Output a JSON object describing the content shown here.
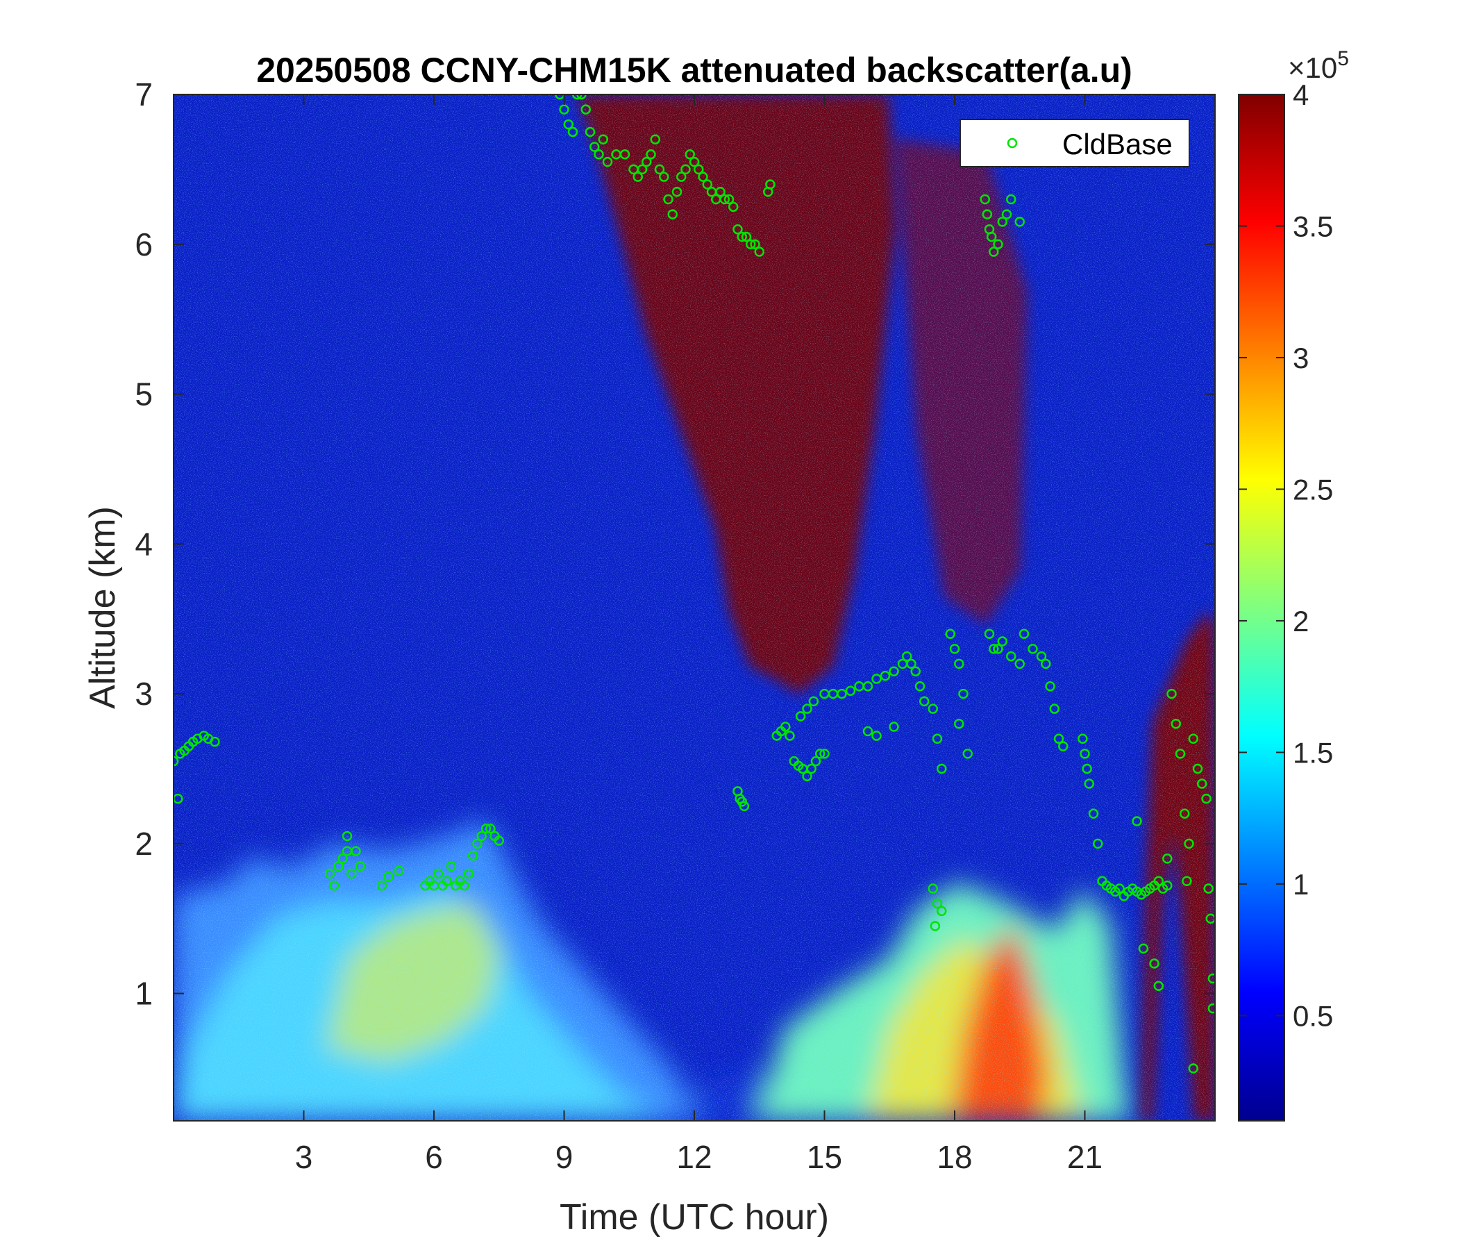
{
  "chart_data": {
    "type": "heatmap",
    "title": "20250508 CCNY-CHM15K attenuated backscatter(a.u)",
    "xlabel": "Time (UTC hour)",
    "ylabel": "Altitude (km)",
    "xlim": [
      0,
      24
    ],
    "ylim": [
      0.15,
      7
    ],
    "xticks": [
      3,
      6,
      9,
      12,
      15,
      18,
      21
    ],
    "xtick_labels": [
      "3",
      "6",
      "9",
      "12",
      "15",
      "18",
      "21"
    ],
    "yticks": [
      1,
      2,
      3,
      4,
      5,
      6,
      7
    ],
    "ytick_labels": [
      "1",
      "2",
      "3",
      "4",
      "5",
      "6",
      "7"
    ],
    "colormap": "jet",
    "colorbar": {
      "range": [
        0.1,
        4.0
      ],
      "ticks": [
        0.5,
        1,
        1.5,
        2,
        2.5,
        3,
        3.5,
        4
      ],
      "tick_labels": [
        "0.5",
        "1",
        "1.5",
        "2",
        "2.5",
        "3",
        "3.5",
        "4"
      ],
      "multiplier_base": "×10",
      "multiplier_exp": "5"
    },
    "legend": {
      "placement": "top-right",
      "entries": [
        {
          "label": "CldBase",
          "color": "#00e600",
          "marker": "circle"
        }
      ]
    },
    "colors": {
      "cloud_base": "#00e600",
      "axes": "#262626"
    },
    "series": [
      {
        "name": "CldBase",
        "type": "scatter",
        "points": [
          [
            0.0,
            2.55
          ],
          [
            0.1,
            2.3
          ],
          [
            0.15,
            2.6
          ],
          [
            0.25,
            2.62
          ],
          [
            0.35,
            2.65
          ],
          [
            0.45,
            2.68
          ],
          [
            0.55,
            2.7
          ],
          [
            0.7,
            2.72
          ],
          [
            0.8,
            2.7
          ],
          [
            0.95,
            2.68
          ],
          [
            3.6,
            1.8
          ],
          [
            3.7,
            1.72
          ],
          [
            3.8,
            1.85
          ],
          [
            3.9,
            1.9
          ],
          [
            4.0,
            1.95
          ],
          [
            4.1,
            1.8
          ],
          [
            4.2,
            1.95
          ],
          [
            4.3,
            1.85
          ],
          [
            4.0,
            2.05
          ],
          [
            4.8,
            1.72
          ],
          [
            4.95,
            1.78
          ],
          [
            5.2,
            1.82
          ],
          [
            5.8,
            1.72
          ],
          [
            5.9,
            1.75
          ],
          [
            6.0,
            1.72
          ],
          [
            6.1,
            1.8
          ],
          [
            6.2,
            1.72
          ],
          [
            6.3,
            1.75
          ],
          [
            6.4,
            1.85
          ],
          [
            6.5,
            1.72
          ],
          [
            6.6,
            1.75
          ],
          [
            6.7,
            1.72
          ],
          [
            6.8,
            1.8
          ],
          [
            6.9,
            1.92
          ],
          [
            7.0,
            2.0
          ],
          [
            7.1,
            2.05
          ],
          [
            7.2,
            2.1
          ],
          [
            7.3,
            2.1
          ],
          [
            7.4,
            2.05
          ],
          [
            7.5,
            2.02
          ],
          [
            8.9,
            7.0
          ],
          [
            9.0,
            6.9
          ],
          [
            9.1,
            6.8
          ],
          [
            9.2,
            6.75
          ],
          [
            9.3,
            7.0
          ],
          [
            9.4,
            7.0
          ],
          [
            9.5,
            6.9
          ],
          [
            9.6,
            6.75
          ],
          [
            9.7,
            6.65
          ],
          [
            9.8,
            6.6
          ],
          [
            9.9,
            6.7
          ],
          [
            10.0,
            6.55
          ],
          [
            10.2,
            6.6
          ],
          [
            10.4,
            6.6
          ],
          [
            10.6,
            6.5
          ],
          [
            10.7,
            6.45
          ],
          [
            10.8,
            6.5
          ],
          [
            10.9,
            6.55
          ],
          [
            11.0,
            6.6
          ],
          [
            11.1,
            6.7
          ],
          [
            11.2,
            6.5
          ],
          [
            11.3,
            6.45
          ],
          [
            11.4,
            6.3
          ],
          [
            11.5,
            6.2
          ],
          [
            11.6,
            6.35
          ],
          [
            11.7,
            6.45
          ],
          [
            11.8,
            6.5
          ],
          [
            11.9,
            6.6
          ],
          [
            12.0,
            6.55
          ],
          [
            12.1,
            6.5
          ],
          [
            12.2,
            6.45
          ],
          [
            12.3,
            6.4
          ],
          [
            12.4,
            6.35
          ],
          [
            12.5,
            6.3
          ],
          [
            12.6,
            6.35
          ],
          [
            12.7,
            6.3
          ],
          [
            12.8,
            6.3
          ],
          [
            12.9,
            6.25
          ],
          [
            13.0,
            6.1
          ],
          [
            13.1,
            6.05
          ],
          [
            13.2,
            6.05
          ],
          [
            13.3,
            6.0
          ],
          [
            13.4,
            6.0
          ],
          [
            13.5,
            5.95
          ],
          [
            13.7,
            6.35
          ],
          [
            13.75,
            6.4
          ],
          [
            13.0,
            2.35
          ],
          [
            13.05,
            2.3
          ],
          [
            13.1,
            2.28
          ],
          [
            13.15,
            2.25
          ],
          [
            13.9,
            2.72
          ],
          [
            14.0,
            2.75
          ],
          [
            14.1,
            2.78
          ],
          [
            14.2,
            2.72
          ],
          [
            14.3,
            2.55
          ],
          [
            14.4,
            2.52
          ],
          [
            14.5,
            2.5
          ],
          [
            14.6,
            2.45
          ],
          [
            14.7,
            2.5
          ],
          [
            14.8,
            2.55
          ],
          [
            14.9,
            2.6
          ],
          [
            15.0,
            2.6
          ],
          [
            14.45,
            2.85
          ],
          [
            14.6,
            2.9
          ],
          [
            14.75,
            2.95
          ],
          [
            15.0,
            3.0
          ],
          [
            15.2,
            3.0
          ],
          [
            15.4,
            3.0
          ],
          [
            15.6,
            3.02
          ],
          [
            15.8,
            3.05
          ],
          [
            16.0,
            3.05
          ],
          [
            16.2,
            3.1
          ],
          [
            16.4,
            3.12
          ],
          [
            16.6,
            3.15
          ],
          [
            16.8,
            3.2
          ],
          [
            16.0,
            2.75
          ],
          [
            16.2,
            2.72
          ],
          [
            16.6,
            2.78
          ],
          [
            16.9,
            3.25
          ],
          [
            17.0,
            3.2
          ],
          [
            17.1,
            3.15
          ],
          [
            17.2,
            3.05
          ],
          [
            17.3,
            2.95
          ],
          [
            17.5,
            2.9
          ],
          [
            17.6,
            2.7
          ],
          [
            17.7,
            2.5
          ],
          [
            17.5,
            1.7
          ],
          [
            17.6,
            1.6
          ],
          [
            17.7,
            1.55
          ],
          [
            17.55,
            1.45
          ],
          [
            17.9,
            3.4
          ],
          [
            18.0,
            3.3
          ],
          [
            18.1,
            3.2
          ],
          [
            18.2,
            3.0
          ],
          [
            18.1,
            2.8
          ],
          [
            18.3,
            2.6
          ],
          [
            18.8,
            3.4
          ],
          [
            18.9,
            3.3
          ],
          [
            19.0,
            3.3
          ],
          [
            19.1,
            3.35
          ],
          [
            19.3,
            3.25
          ],
          [
            19.5,
            3.2
          ],
          [
            19.6,
            3.4
          ],
          [
            19.8,
            3.3
          ],
          [
            20.0,
            3.25
          ],
          [
            20.1,
            3.2
          ],
          [
            20.2,
            3.05
          ],
          [
            20.3,
            2.9
          ],
          [
            20.4,
            2.7
          ],
          [
            20.5,
            2.65
          ],
          [
            20.95,
            2.7
          ],
          [
            21.0,
            2.6
          ],
          [
            21.05,
            2.5
          ],
          [
            21.1,
            2.4
          ],
          [
            21.2,
            2.2
          ],
          [
            21.3,
            2.0
          ],
          [
            21.4,
            1.75
          ],
          [
            21.5,
            1.72
          ],
          [
            21.6,
            1.7
          ],
          [
            21.7,
            1.68
          ],
          [
            21.8,
            1.7
          ],
          [
            21.9,
            1.65
          ],
          [
            22.0,
            1.68
          ],
          [
            22.1,
            1.7
          ],
          [
            22.2,
            1.68
          ],
          [
            22.3,
            1.66
          ],
          [
            22.4,
            1.68
          ],
          [
            22.5,
            1.7
          ],
          [
            22.6,
            1.72
          ],
          [
            22.7,
            1.75
          ],
          [
            22.8,
            1.7
          ],
          [
            22.9,
            1.72
          ],
          [
            22.2,
            2.15
          ],
          [
            22.35,
            1.3
          ],
          [
            22.6,
            1.2
          ],
          [
            22.7,
            1.05
          ],
          [
            22.9,
            1.9
          ],
          [
            18.7,
            6.3
          ],
          [
            18.75,
            6.2
          ],
          [
            18.8,
            6.1
          ],
          [
            18.85,
            6.05
          ],
          [
            18.9,
            5.95
          ],
          [
            19.0,
            6.0
          ],
          [
            19.1,
            6.15
          ],
          [
            19.2,
            6.2
          ],
          [
            19.3,
            6.3
          ],
          [
            19.5,
            6.15
          ],
          [
            23.0,
            3.0
          ],
          [
            23.1,
            2.8
          ],
          [
            23.2,
            2.6
          ],
          [
            23.3,
            2.2
          ],
          [
            23.35,
            1.75
          ],
          [
            23.4,
            2.0
          ],
          [
            23.5,
            2.7
          ],
          [
            23.6,
            2.5
          ],
          [
            23.7,
            2.4
          ],
          [
            23.8,
            2.3
          ],
          [
            23.85,
            1.7
          ],
          [
            23.9,
            1.5
          ],
          [
            23.95,
            1.1
          ],
          [
            23.95,
            0.9
          ],
          [
            23.5,
            0.5
          ]
        ]
      }
    ]
  }
}
